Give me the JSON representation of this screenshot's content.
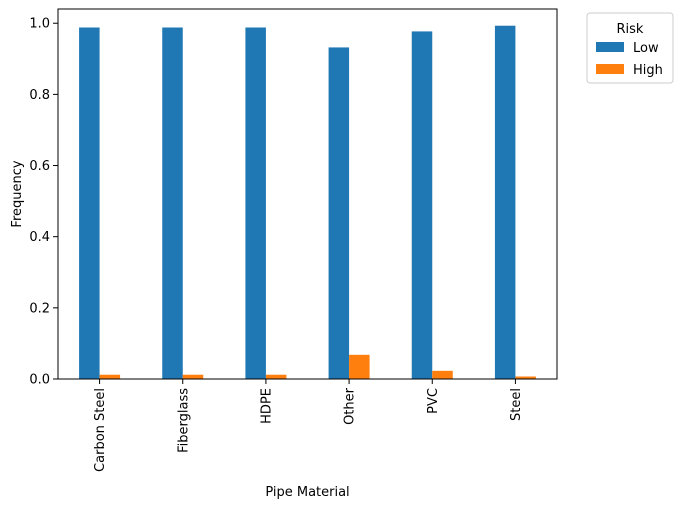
{
  "chart_data": {
    "type": "bar",
    "title": "",
    "xlabel": "Pipe Material",
    "ylabel": "Frequency",
    "categories": [
      "Carbon Steel",
      "Fiberglass",
      "HDPE",
      "Other",
      "PVC",
      "Steel"
    ],
    "series": [
      {
        "name": "Low",
        "color": "#1f77b4",
        "values": [
          0.988,
          0.988,
          0.988,
          0.932,
          0.977,
          0.993
        ]
      },
      {
        "name": "High",
        "color": "#ff7f0e",
        "values": [
          0.012,
          0.012,
          0.012,
          0.068,
          0.023,
          0.007
        ]
      }
    ],
    "ylim": [
      0,
      1.04
    ],
    "yticks": [
      "0.0",
      "0.2",
      "0.4",
      "0.6",
      "0.8",
      "1.0"
    ],
    "legend": {
      "title": "Risk",
      "placement": "outside-top-right"
    },
    "grid": false
  }
}
